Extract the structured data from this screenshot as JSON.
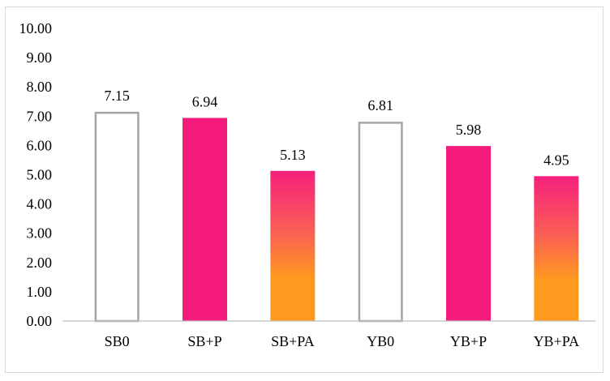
{
  "chart_data": {
    "type": "bar",
    "title": "",
    "xlabel": "",
    "ylabel": "",
    "ylim": [
      0,
      10
    ],
    "ytick_step": 1,
    "ytick_labels": [
      "0.00",
      "1.00",
      "2.00",
      "3.00",
      "4.00",
      "5.00",
      "6.00",
      "7.00",
      "8.00",
      "9.00",
      "10.00"
    ],
    "grid": false,
    "legend": "none",
    "categories": [
      "SB0",
      "SB+P",
      "SB+PA",
      "YB0",
      "YB+P",
      "YB+PA"
    ],
    "values": [
      7.15,
      6.94,
      5.13,
      6.81,
      5.98,
      4.95
    ],
    "data_labels": [
      "7.15",
      "6.94",
      "5.13",
      "6.81",
      "5.98",
      "4.95"
    ],
    "bar_styles": [
      "outline",
      "solid",
      "gradient",
      "outline",
      "solid",
      "gradient"
    ]
  },
  "colors": {
    "outline_stroke": "#a6a6a6",
    "solid_fill": "#f51b7c",
    "gradient_top": "#f5207d",
    "gradient_mid": "#fa5e55",
    "gradient_bottom": "#ff9a1f",
    "axis": "#bfbfbf",
    "text": "#000000"
  }
}
